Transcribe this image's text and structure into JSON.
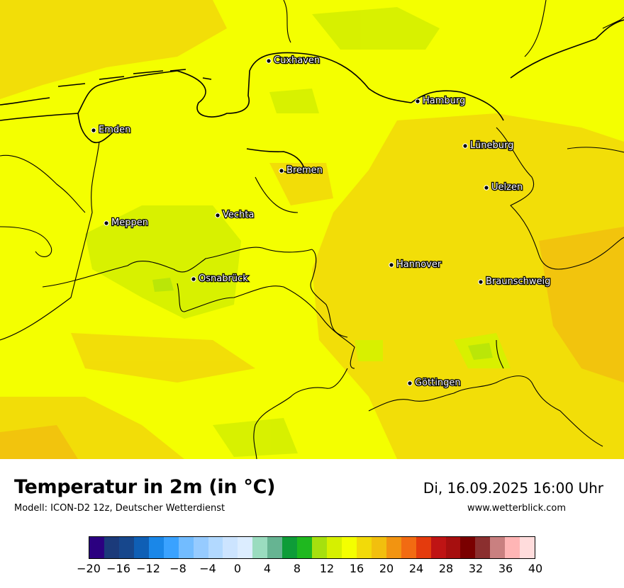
{
  "title": "Temperatur in 2m (in °C)",
  "subtitle": "Modell: ICON-D2 12z, Deutscher Wetterdienst",
  "datetime": "Di, 16.09.2025 16:00 Uhr",
  "website": "www.wetterblick.com",
  "map": {
    "base_color": "#f4ff00",
    "cities": [
      {
        "name": "Cuxhaven"
      },
      {
        "name": "Hamburg"
      },
      {
        "name": "Emden"
      },
      {
        "name": "Lüneburg"
      },
      {
        "name": "Bremen"
      },
      {
        "name": "Uelzen"
      },
      {
        "name": "Vechta"
      },
      {
        "name": "Meppen"
      },
      {
        "name": "Hannover"
      },
      {
        "name": "Osnabrück"
      },
      {
        "name": "Braunschweig"
      },
      {
        "name": "Göttingen"
      }
    ]
  },
  "legend": {
    "colors": [
      "#2b0080",
      "#1b3a7a",
      "#17478c",
      "#0f5fb5",
      "#1a87e8",
      "#3aa2ff",
      "#72bcff",
      "#96cbff",
      "#b2d9ff",
      "#cce4ff",
      "#dcedff",
      "#9adcbf",
      "#66b492",
      "#0e9c38",
      "#1fb81f",
      "#a6e00e",
      "#d6f000",
      "#f4ff00",
      "#f2da09",
      "#f2bf0e",
      "#f29411",
      "#f26b12",
      "#e43b0d",
      "#bf1414",
      "#a60f0f",
      "#7a0000",
      "#8b2f2f",
      "#c98080",
      "#ffb5b5",
      "#ffdcdc"
    ],
    "ticks": [
      "−20",
      "−16",
      "−12",
      "−8",
      "−4",
      "0",
      "4",
      "8",
      "12",
      "16",
      "20",
      "24",
      "28",
      "32",
      "36",
      "40"
    ]
  }
}
